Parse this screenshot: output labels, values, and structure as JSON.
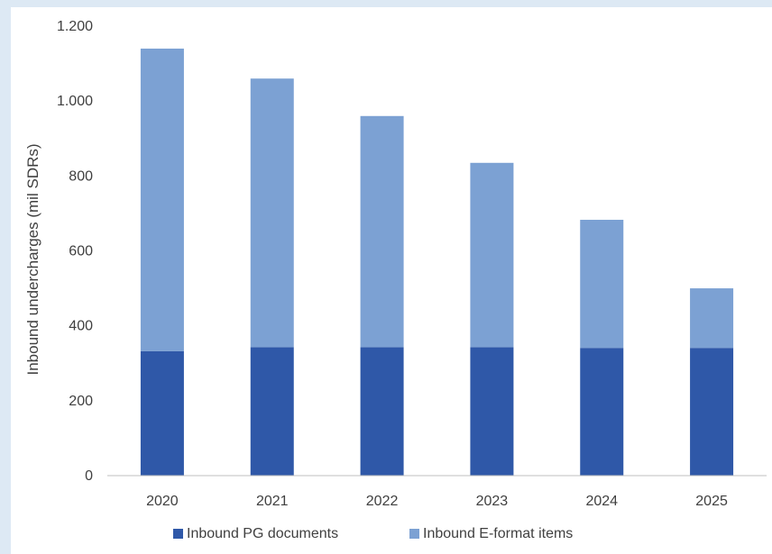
{
  "chart_data": {
    "type": "bar",
    "stacked": true,
    "categories": [
      "2020",
      "2021",
      "2022",
      "2023",
      "2024",
      "2025"
    ],
    "series": [
      {
        "name": "Inbound PG documents",
        "values": [
          332,
          343,
          343,
          343,
          341,
          341
        ],
        "color": "#2f58a8"
      },
      {
        "name": "Inbound E-format items",
        "values": [
          808,
          717,
          617,
          492,
          342,
          159
        ],
        "color": "#7ca1d3"
      }
    ],
    "title": "",
    "xlabel": "",
    "ylabel": "Inbound undercharges (mil SDRs)",
    "ylim": [
      0,
      1200
    ],
    "yticks": [
      0,
      200,
      400,
      600,
      800,
      1000,
      1200
    ],
    "ytick_labels": [
      "0",
      "200",
      "400",
      "600",
      "800",
      "1.000",
      "1.200"
    ],
    "grid": false,
    "legend_position": "bottom"
  }
}
